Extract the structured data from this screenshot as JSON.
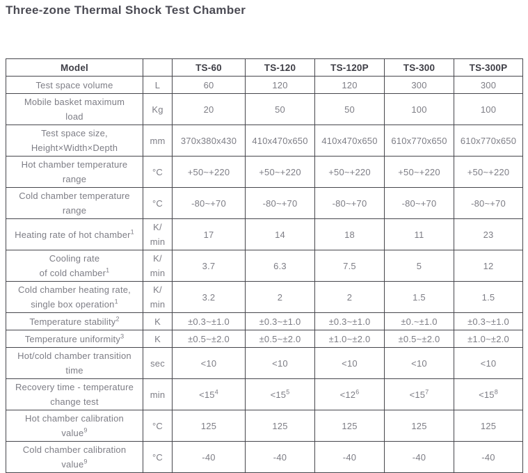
{
  "title": "Three-zone Thermal Shock Test Chamber",
  "table": {
    "columns": {
      "model": "Model",
      "unit": "",
      "models": [
        "TS-60",
        "TS-120",
        "TS-120P",
        "TS-300",
        "TS-300P"
      ]
    },
    "rows": [
      {
        "label": "Test space volume",
        "unit": "L",
        "values": [
          "60",
          "120",
          "120",
          "300",
          "300"
        ]
      },
      {
        "label": "Mobile basket maximum\nload",
        "unit": "Kg",
        "values": [
          "20",
          "50",
          "50",
          "100",
          "100"
        ]
      },
      {
        "label": "Test space size,\nHeight×Width×Depth",
        "unit": "mm",
        "values": [
          "370x380x430",
          "410x470x650",
          "410x470x650",
          "610x770x650",
          "610x770x650"
        ]
      },
      {
        "label": "Hot chamber temperature\nrange",
        "unit": "°C",
        "values": [
          "+50~+220",
          "+50~+220",
          "+50~+220",
          "+50~+220",
          "+50~+220"
        ]
      },
      {
        "label": "Cold chamber temperature\nrange",
        "unit": "°C",
        "values": [
          "-80~+70",
          "-80~+70",
          "-80~+70",
          "-80~+70",
          "-80~+70"
        ]
      },
      {
        "label": "Heating rate of hot chamber",
        "label_sup": "1",
        "unit": "K/\nmin",
        "values": [
          "17",
          "14",
          "18",
          "11",
          "23"
        ]
      },
      {
        "label": "Cooling rate\nof cold chamber",
        "label_sup": "1",
        "unit": "K/\nmin",
        "values": [
          "3.7",
          "6.3",
          "7.5",
          "5",
          "12"
        ]
      },
      {
        "label": "Cold chamber heating rate,\nsingle box operation",
        "label_sup": "1",
        "unit": "K/\nmin",
        "values": [
          "3.2",
          "2",
          "2",
          "1.5",
          "1.5"
        ]
      },
      {
        "label": "Temperature stability",
        "label_sup": "2",
        "unit": "K",
        "values": [
          "±0.3~±1.0",
          "±0.3~±1.0",
          "±0.3~±1.0",
          "±0.~±1.0",
          "±0.3~±1.0"
        ]
      },
      {
        "label": "Temperature uniformity",
        "label_sup": "3",
        "unit": "K",
        "values": [
          "±0.5~±2.0",
          "±0.5~±2.0",
          "±1.0~±2.0",
          "±0.5~±2.0",
          "±1.0~±2.0"
        ]
      },
      {
        "label": "Hot/cold chamber transition\ntime",
        "unit": "sec",
        "values": [
          "<10",
          "<10",
          "<10",
          "<10",
          "<10"
        ]
      },
      {
        "label": "Recovery time - temperature\nchange test",
        "unit": "min",
        "values": [
          {
            "text": "<15",
            "sup": "4"
          },
          {
            "text": "<15",
            "sup": "5"
          },
          {
            "text": "<12",
            "sup": "6"
          },
          {
            "text": "<15",
            "sup": "7"
          },
          {
            "text": "<15",
            "sup": "8"
          }
        ]
      },
      {
        "label": "Hot chamber calibration\nvalue",
        "label_sup": "9",
        "unit": "°C",
        "values": [
          "125",
          "125",
          "125",
          "125",
          "125"
        ]
      },
      {
        "label": "Cold chamber calibration\nvalue",
        "label_sup": "9",
        "unit": "°C",
        "values": [
          "-40",
          "-40",
          "-40",
          "-40",
          "-40"
        ]
      }
    ]
  }
}
